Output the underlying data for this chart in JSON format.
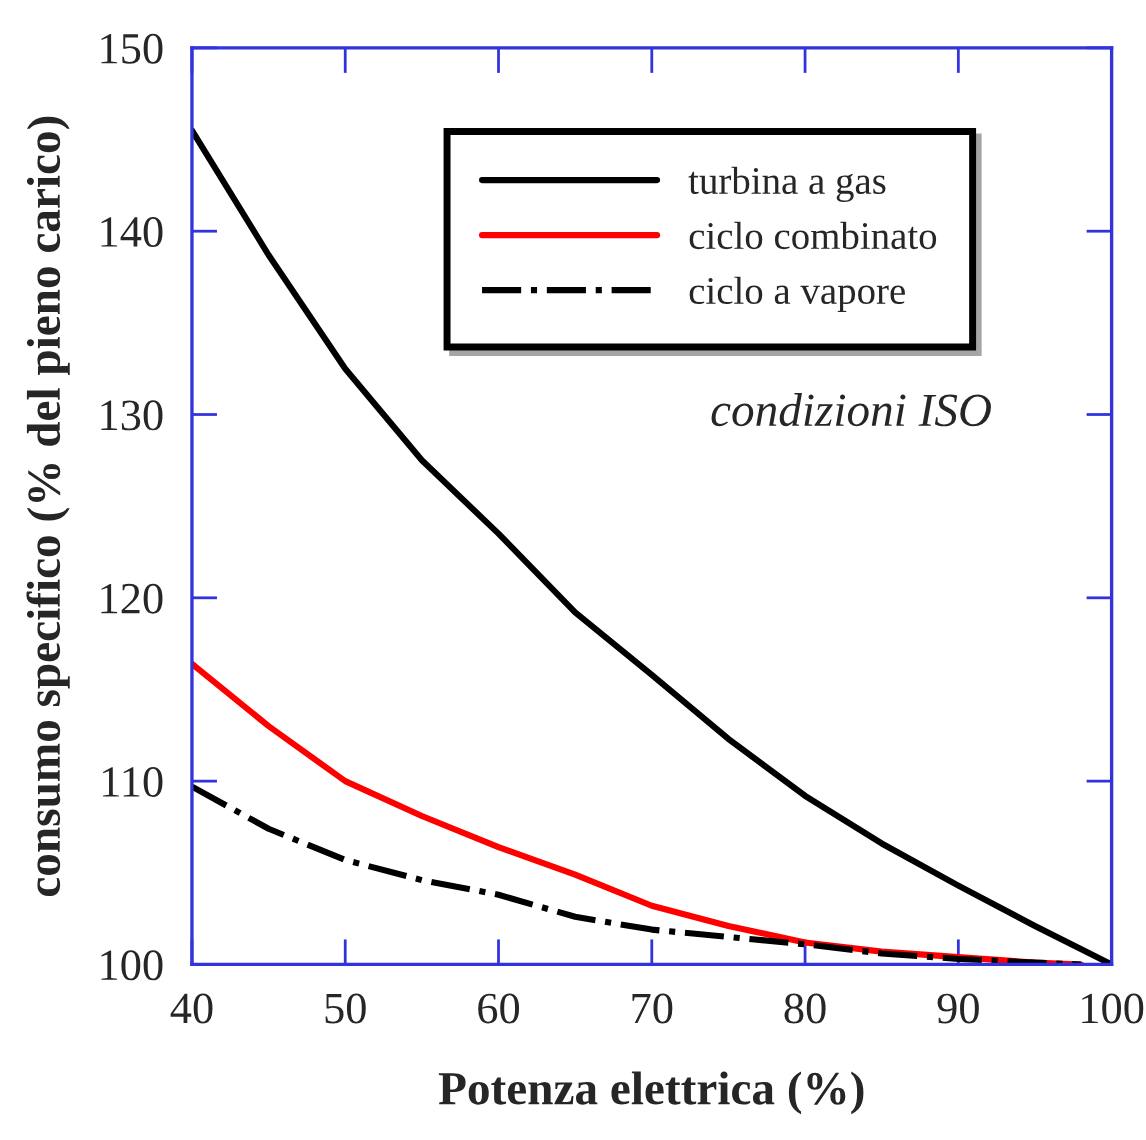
{
  "chart_data": {
    "type": "line",
    "xlabel": "Potenza elettrica (%)",
    "ylabel": "consumo specifico (% del pieno carico)",
    "x": [
      40,
      45,
      50,
      55,
      60,
      65,
      70,
      75,
      80,
      85,
      90,
      95,
      100
    ],
    "series": [
      {
        "name": "turbina a gas",
        "color": "#000000",
        "line_style": "solid",
        "values": [
          145.5,
          138.7,
          132.5,
          127.5,
          123.5,
          119.2,
          115.8,
          112.3,
          109.2,
          106.6,
          104.3,
          102.1,
          100
        ]
      },
      {
        "name": "ciclo combinato",
        "color": "#ff0000",
        "line_style": "solid",
        "x": [
          40,
          45,
          50,
          55,
          60,
          65,
          70,
          75,
          80,
          85,
          90,
          95,
          98
        ],
        "values": [
          116.4,
          113.0,
          110.0,
          108.1,
          106.4,
          104.9,
          103.2,
          102.1,
          101.2,
          100.7,
          100.4,
          100.1,
          100
        ]
      },
      {
        "name": "ciclo a vapore",
        "color": "#000000",
        "line_style": "dashdot",
        "x": [
          40,
          45,
          50,
          55,
          60,
          65,
          70,
          75,
          80,
          85,
          90,
          95,
          98
        ],
        "values": [
          109.7,
          107.4,
          105.7,
          104.6,
          103.8,
          102.6,
          101.9,
          101.5,
          101.1,
          100.6,
          100.3,
          100.1,
          100
        ]
      }
    ],
    "annotations": [
      "condizioni ISO"
    ],
    "xlim": [
      40,
      100
    ],
    "xticks": [
      40,
      50,
      60,
      70,
      80,
      90,
      100
    ],
    "ylim": [
      100,
      150
    ],
    "yticks": [
      100,
      110,
      120,
      130,
      140,
      150
    ],
    "grid": false,
    "legend": "top right",
    "marker": "none"
  }
}
